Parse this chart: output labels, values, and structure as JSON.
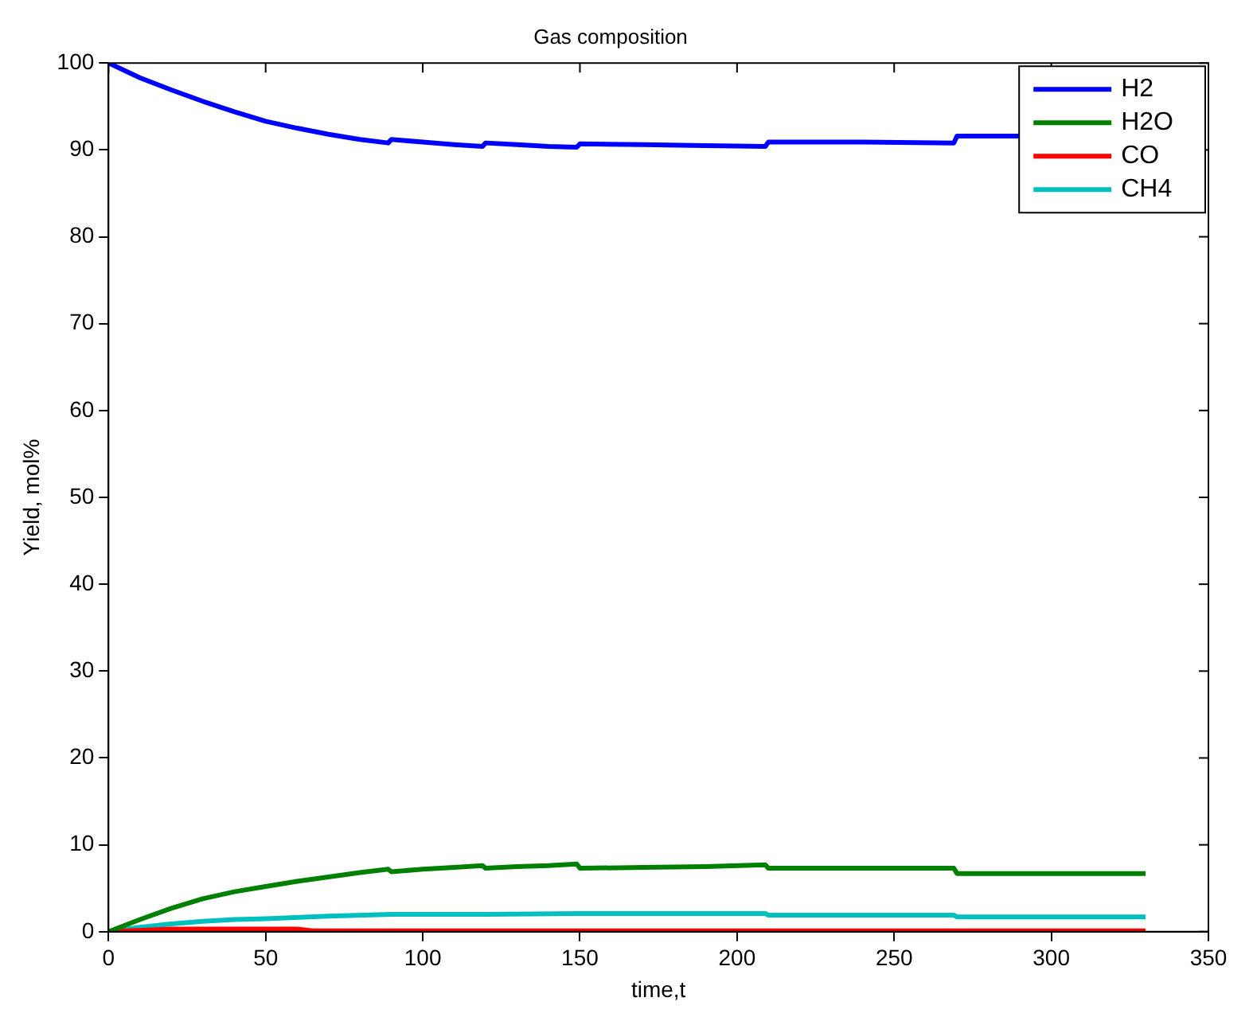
{
  "chart_data": {
    "type": "line",
    "title": "Gas composition",
    "xlabel": "time,t",
    "ylabel": "Yield, mol%",
    "xlim": [
      0,
      350
    ],
    "xticks": [
      0,
      50,
      100,
      150,
      200,
      250,
      300,
      350
    ],
    "ylim": [
      0,
      100
    ],
    "yticks": [
      0,
      10,
      20,
      30,
      40,
      50,
      60,
      70,
      80,
      90,
      100
    ],
    "grid": false,
    "legend": "top right",
    "marker": "none",
    "line_style": "solid",
    "series": [
      {
        "name": "H2",
        "color": "#0000ff",
        "x": [
          0,
          10,
          20,
          30,
          40,
          50,
          60,
          70,
          80,
          89,
          90,
          100,
          110,
          119,
          120,
          130,
          140,
          149,
          150,
          170,
          190,
          209,
          210,
          240,
          269,
          270,
          290
        ],
        "values": [
          100,
          98.3,
          96.9,
          95.6,
          94.4,
          93.3,
          92.5,
          91.8,
          91.2,
          90.8,
          91.2,
          90.9,
          90.6,
          90.4,
          90.8,
          90.6,
          90.4,
          90.3,
          90.7,
          90.6,
          90.5,
          90.4,
          90.9,
          90.9,
          90.8,
          91.6,
          91.6
        ]
      },
      {
        "name": "H2O",
        "color": "#008000",
        "x": [
          0,
          10,
          20,
          30,
          40,
          50,
          60,
          70,
          80,
          89,
          90,
          100,
          110,
          119,
          120,
          130,
          140,
          149,
          150,
          170,
          190,
          209,
          210,
          240,
          269,
          270,
          330
        ],
        "values": [
          0,
          1.4,
          2.7,
          3.8,
          4.6,
          5.2,
          5.8,
          6.3,
          6.8,
          7.2,
          6.9,
          7.2,
          7.4,
          7.6,
          7.3,
          7.5,
          7.6,
          7.8,
          7.3,
          7.4,
          7.5,
          7.7,
          7.3,
          7.3,
          7.3,
          6.7,
          6.7
        ]
      },
      {
        "name": "CO",
        "color": "#ff0000",
        "x": [
          0,
          20,
          60,
          65,
          330
        ],
        "values": [
          0,
          0.3,
          0.3,
          0.1,
          0.1
        ]
      },
      {
        "name": "CH4",
        "color": "#00bfbf",
        "x": [
          0,
          10,
          20,
          30,
          40,
          50,
          70,
          90,
          120,
          150,
          180,
          209,
          210,
          269,
          270,
          330
        ],
        "values": [
          0,
          0.5,
          0.9,
          1.2,
          1.4,
          1.5,
          1.8,
          2.0,
          2.0,
          2.1,
          2.1,
          2.1,
          1.9,
          1.9,
          1.7,
          1.7
        ]
      }
    ]
  }
}
